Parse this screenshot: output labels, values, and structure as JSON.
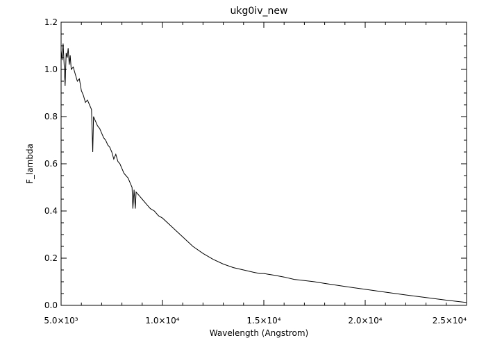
{
  "chart_data": {
    "type": "line",
    "title": "ukg0iv_new",
    "xlabel": "Wavelength (Angstrom)",
    "ylabel": "F_lambda",
    "xlim": [
      5000,
      25000
    ],
    "ylim": [
      0.0,
      1.2
    ],
    "x_ticks": [
      {
        "value": 5000,
        "label": "5.0×10³"
      },
      {
        "value": 10000,
        "label": "1.0×10⁴"
      },
      {
        "value": 15000,
        "label": "1.5×10⁴"
      },
      {
        "value": 20000,
        "label": "2.0×10⁴"
      },
      {
        "value": 25000,
        "label": "2.5×10⁴"
      }
    ],
    "y_ticks": [
      {
        "value": 0.0,
        "label": "0.0"
      },
      {
        "value": 0.2,
        "label": "0.2"
      },
      {
        "value": 0.4,
        "label": "0.4"
      },
      {
        "value": 0.6,
        "label": "0.6"
      },
      {
        "value": 0.8,
        "label": "0.8"
      },
      {
        "value": 1.0,
        "label": "1.0"
      },
      {
        "value": 1.2,
        "label": "1.2"
      }
    ],
    "grid": false,
    "line_color": "#000000",
    "series": [
      {
        "x": [
          5000,
          5050,
          5100,
          5150,
          5200,
          5250,
          5300,
          5350,
          5400,
          5450,
          5500,
          5600,
          5700,
          5800,
          5900,
          6000,
          6100,
          6200,
          6300,
          6400,
          6500,
          6563,
          6600,
          6700,
          6800,
          6900,
          7000,
          7100,
          7200,
          7300,
          7400,
          7500,
          7600,
          7700,
          7800,
          7900,
          8000,
          8100,
          8200,
          8300,
          8400,
          8500,
          8542,
          8600,
          8662,
          8700,
          8800,
          8900,
          9000,
          9200,
          9400,
          9600,
          9800,
          10000,
          10500,
          11000,
          11500,
          12000,
          12500,
          13000,
          13500,
          14000,
          14500,
          14800,
          15000,
          15200,
          15500,
          16000,
          16500,
          17000,
          17500,
          18000,
          19000,
          20000,
          21000,
          22000,
          23000,
          24000,
          25000
        ],
        "y": [
          1.08,
          1.04,
          1.11,
          1.02,
          0.93,
          1.07,
          1.05,
          1.09,
          1.02,
          1.06,
          1.0,
          1.01,
          0.98,
          0.95,
          0.96,
          0.91,
          0.89,
          0.86,
          0.87,
          0.85,
          0.83,
          0.65,
          0.8,
          0.78,
          0.76,
          0.75,
          0.73,
          0.71,
          0.7,
          0.68,
          0.67,
          0.65,
          0.62,
          0.64,
          0.61,
          0.6,
          0.58,
          0.56,
          0.55,
          0.54,
          0.52,
          0.5,
          0.41,
          0.49,
          0.41,
          0.48,
          0.47,
          0.46,
          0.45,
          0.43,
          0.41,
          0.4,
          0.38,
          0.37,
          0.33,
          0.29,
          0.25,
          0.22,
          0.195,
          0.175,
          0.16,
          0.15,
          0.14,
          0.135,
          0.135,
          0.132,
          0.128,
          0.12,
          0.11,
          0.105,
          0.1,
          0.093,
          0.08,
          0.068,
          0.056,
          0.044,
          0.033,
          0.022,
          0.012
        ]
      }
    ]
  }
}
